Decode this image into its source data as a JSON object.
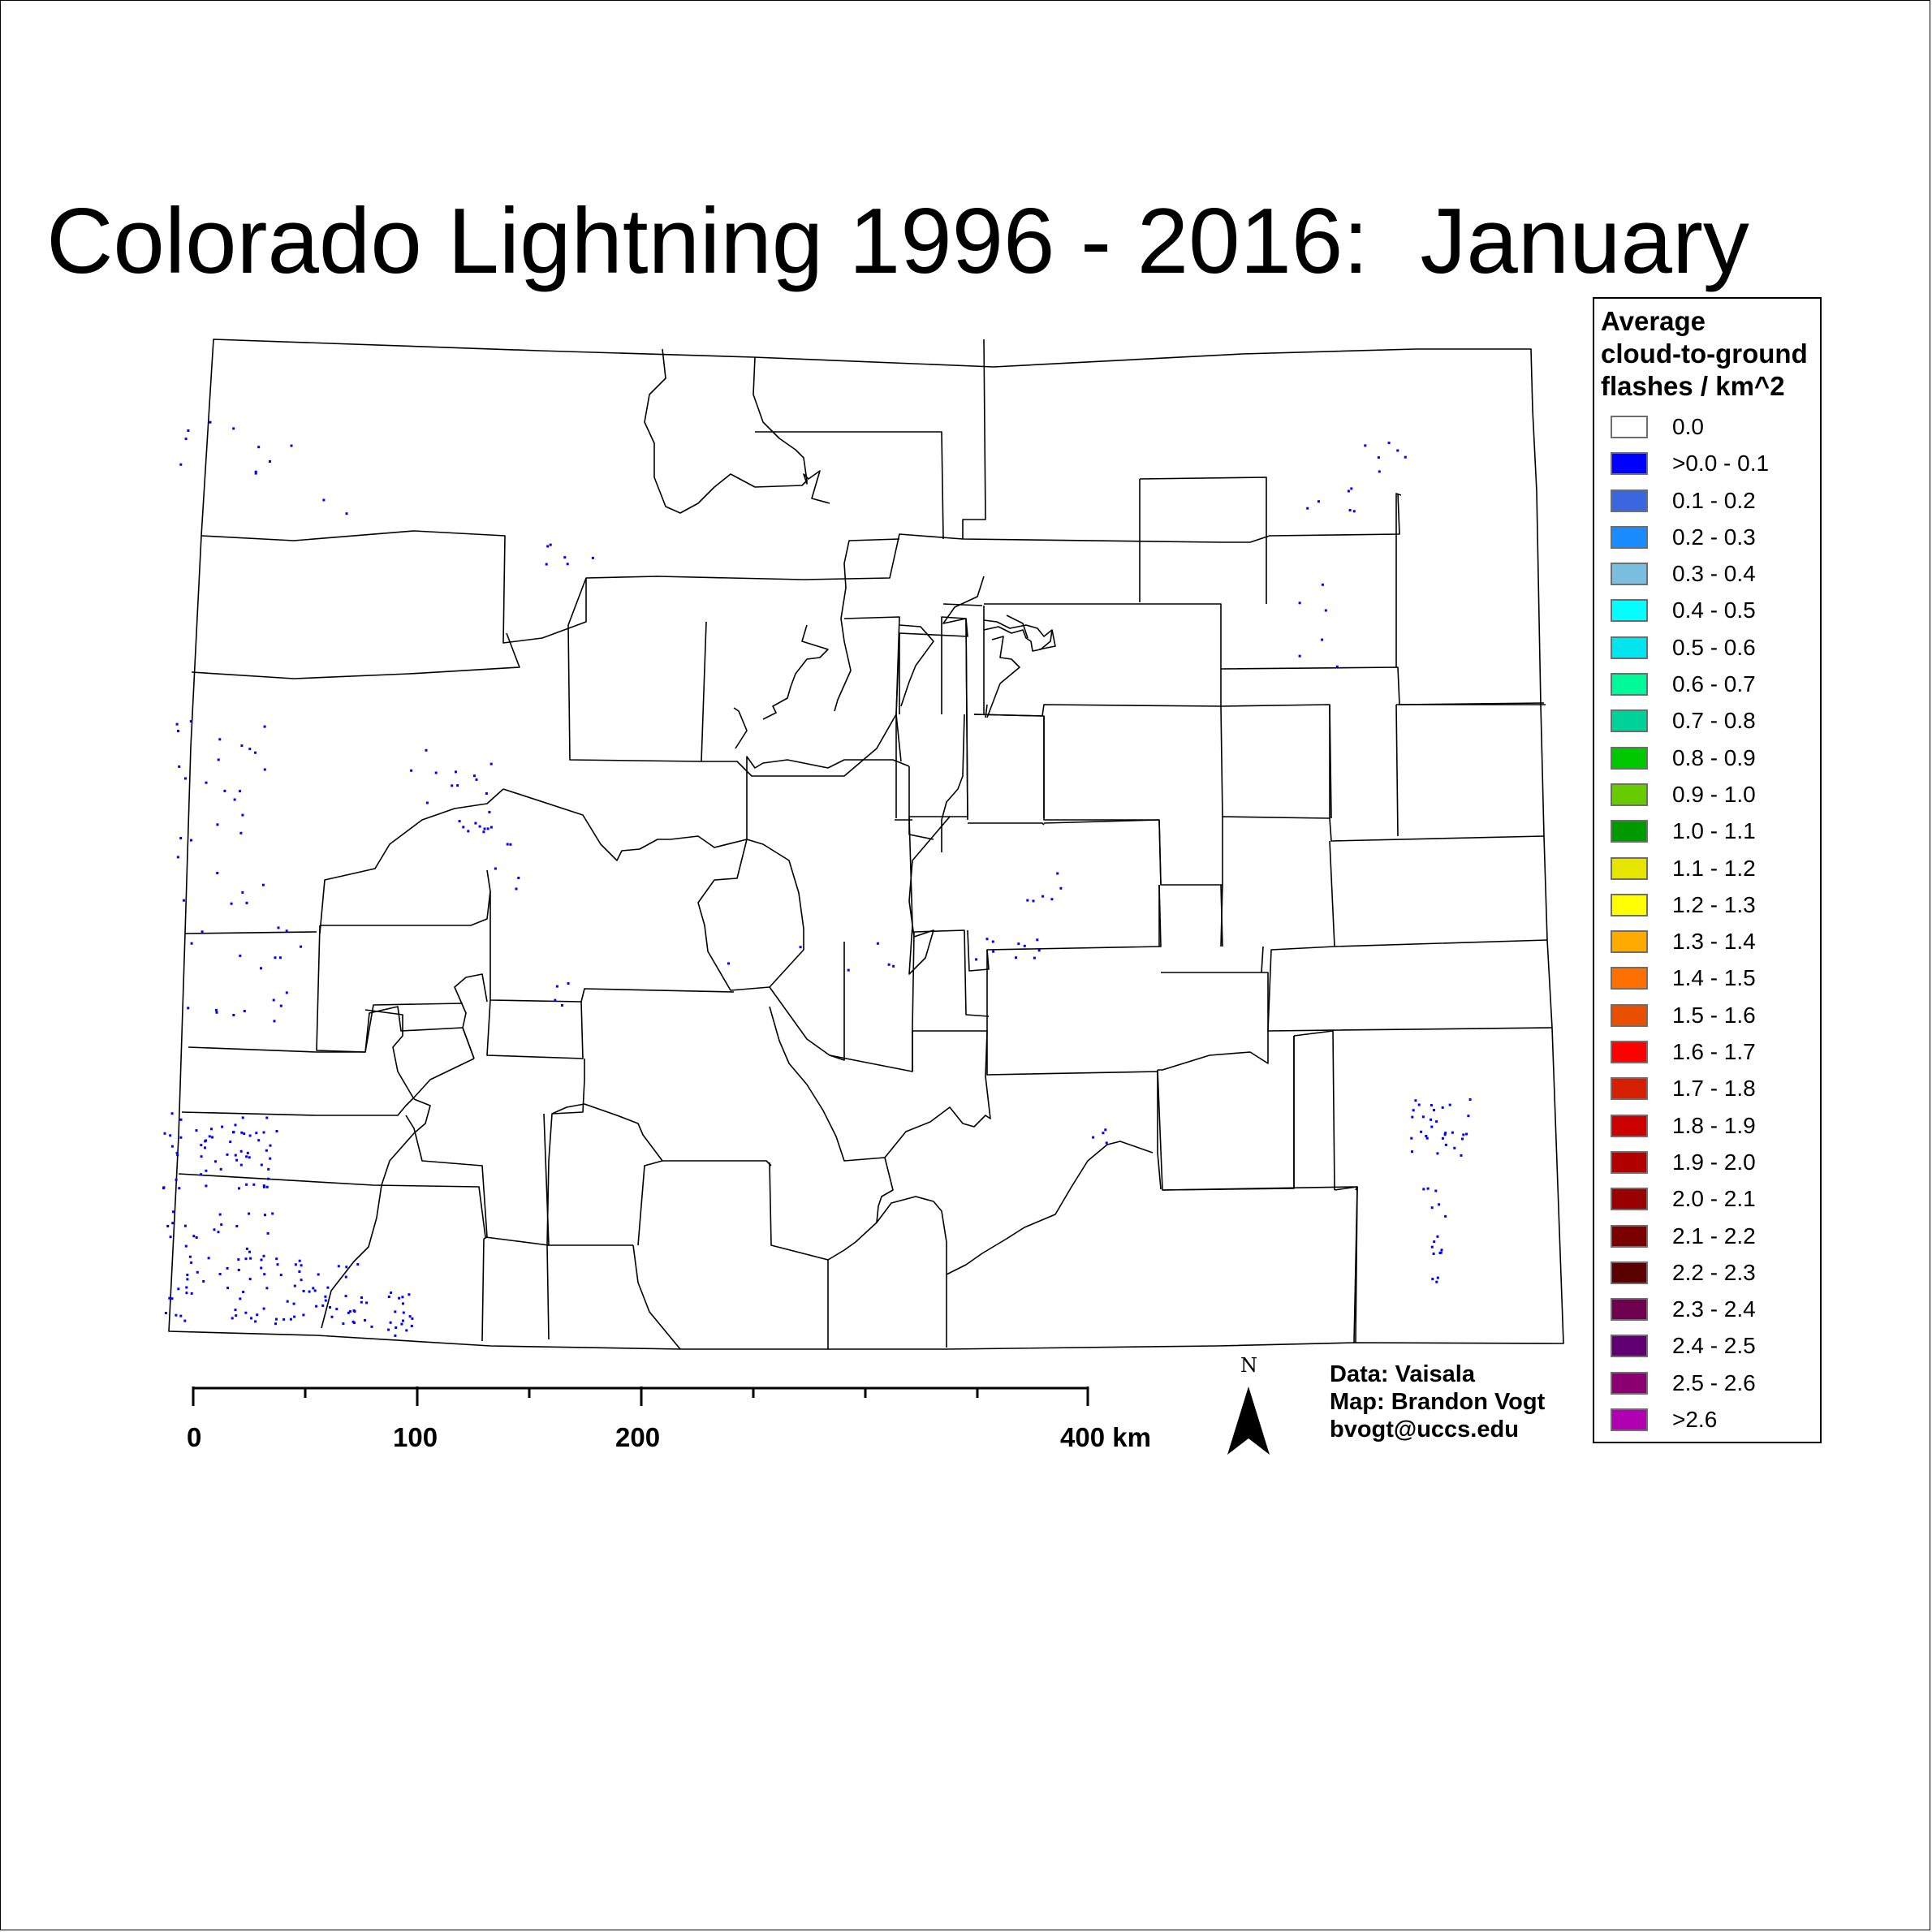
{
  "title": "Colorado Lightning 1996 - 2016:  January",
  "legend": {
    "title_lines": [
      "Average",
      "cloud-to-ground",
      "flashes / km^2"
    ],
    "items": [
      {
        "label": "0.0",
        "color": "#ffffff"
      },
      {
        "label": ">0.0 - 0.1",
        "color": "#0000ff"
      },
      {
        "label": "0.1 - 0.2",
        "color": "#3a66e0"
      },
      {
        "label": "0.2 - 0.3",
        "color": "#1a8cff"
      },
      {
        "label": "0.3 - 0.4",
        "color": "#7bbfe0"
      },
      {
        "label": "0.4 - 0.5",
        "color": "#00ffff"
      },
      {
        "label": "0.5 - 0.6",
        "color": "#00e5ee"
      },
      {
        "label": "0.6 - 0.7",
        "color": "#00fa9a"
      },
      {
        "label": "0.7 - 0.8",
        "color": "#00d29a"
      },
      {
        "label": "0.8 - 0.9",
        "color": "#00c800"
      },
      {
        "label": "0.9 - 1.0",
        "color": "#66cc00"
      },
      {
        "label": "1.0 - 1.1",
        "color": "#009900"
      },
      {
        "label": "1.1 - 1.2",
        "color": "#e5e500"
      },
      {
        "label": "1.2 - 1.3",
        "color": "#ffff00"
      },
      {
        "label": "1.3 - 1.4",
        "color": "#ffaa00"
      },
      {
        "label": "1.4 - 1.5",
        "color": "#ff7000"
      },
      {
        "label": "1.5 - 1.6",
        "color": "#e85000"
      },
      {
        "label": "1.6 - 1.7",
        "color": "#ff0000"
      },
      {
        "label": "1.7 - 1.8",
        "color": "#d42000"
      },
      {
        "label": "1.8 - 1.9",
        "color": "#cc0000"
      },
      {
        "label": "1.9 - 2.0",
        "color": "#b00000"
      },
      {
        "label": "2.0 - 2.1",
        "color": "#990000"
      },
      {
        "label": "2.1 - 2.2",
        "color": "#7a0000"
      },
      {
        "label": "2.2 - 2.3",
        "color": "#5a0000"
      },
      {
        "label": "2.3 - 2.4",
        "color": "#6e0050"
      },
      {
        "label": "2.4 - 2.5",
        "color": "#600070"
      },
      {
        "label": "2.5 - 2.6",
        "color": "#8a0070"
      },
      {
        "label": ">2.6",
        "color": "#b000b0"
      }
    ]
  },
  "scale_bar": {
    "labels": [
      "0",
      "100",
      "200",
      "400 km"
    ]
  },
  "north_arrow": {
    "letter": "N"
  },
  "credits": [
    "Data: Vaisala",
    "Map: Brandon Vogt",
    "bvogt@uccs.edu"
  ],
  "colors": {
    "flash": "#0000ff",
    "county_line": "#000000"
  }
}
